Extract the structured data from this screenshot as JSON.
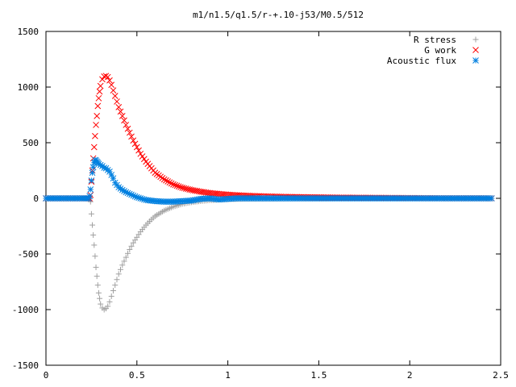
{
  "chart_data": {
    "type": "scatter",
    "title": "m1/n1.5/q1.5/r-+.10-j53/M0.5/512",
    "xlabel": "",
    "ylabel": "",
    "xlim": [
      0,
      2.5
    ],
    "ylim": [
      -1500,
      1500
    ],
    "xticks": [
      0,
      0.5,
      1,
      1.5,
      2,
      2.5
    ],
    "xtick_labels": [
      "0",
      "0.5",
      "1",
      "1.5",
      "2",
      "2.5"
    ],
    "yticks": [
      -1500,
      -1000,
      -500,
      0,
      500,
      1000,
      1500
    ],
    "ytick_labels": [
      "-1500",
      "-1000",
      "-500",
      "0",
      "500",
      "1000",
      "1500"
    ],
    "grid": false,
    "legend_position": "top-right",
    "series": [
      {
        "name": "R stress",
        "marker": "plus",
        "color": "#a0a0a0",
        "x": [
          0.0,
          0.05,
          0.1,
          0.15,
          0.2,
          0.24,
          0.245,
          0.25,
          0.255,
          0.26,
          0.265,
          0.27,
          0.275,
          0.28,
          0.285,
          0.29,
          0.295,
          0.3,
          0.31,
          0.32,
          0.33,
          0.34,
          0.35,
          0.36,
          0.37,
          0.38,
          0.39,
          0.4,
          0.42,
          0.44,
          0.46,
          0.48,
          0.5,
          0.52,
          0.55,
          0.58,
          0.6,
          0.65,
          0.7,
          0.75,
          0.8,
          0.85,
          0.9,
          0.95,
          1.0,
          1.05,
          1.1,
          1.2,
          1.3,
          1.4,
          1.5,
          1.6,
          1.7,
          1.8,
          1.9,
          2.0,
          2.1,
          2.2,
          2.3,
          2.4,
          2.45
        ],
        "y": [
          0,
          0,
          0,
          0,
          0,
          0,
          -30,
          -140,
          -240,
          -330,
          -420,
          -520,
          -620,
          -700,
          -780,
          -850,
          -900,
          -950,
          -985,
          -1000,
          -990,
          -970,
          -930,
          -880,
          -830,
          -780,
          -730,
          -680,
          -600,
          -530,
          -460,
          -400,
          -350,
          -300,
          -240,
          -190,
          -160,
          -110,
          -75,
          -50,
          -35,
          -25,
          -17,
          -12,
          -8,
          -6,
          -4,
          -3,
          -2,
          -1,
          -1,
          0,
          0,
          0,
          0,
          0,
          0,
          0,
          0,
          0,
          0
        ]
      },
      {
        "name": "G work",
        "marker": "cross",
        "color": "#ff0000",
        "x": [
          0.0,
          0.05,
          0.1,
          0.15,
          0.2,
          0.24,
          0.245,
          0.25,
          0.255,
          0.26,
          0.265,
          0.27,
          0.275,
          0.28,
          0.285,
          0.29,
          0.295,
          0.3,
          0.31,
          0.32,
          0.33,
          0.34,
          0.35,
          0.36,
          0.37,
          0.38,
          0.39,
          0.4,
          0.42,
          0.44,
          0.46,
          0.48,
          0.5,
          0.52,
          0.55,
          0.58,
          0.6,
          0.65,
          0.7,
          0.75,
          0.8,
          0.85,
          0.9,
          0.95,
          1.0,
          1.05,
          1.1,
          1.2,
          1.3,
          1.4,
          1.5,
          1.6,
          1.7,
          1.8,
          1.9,
          2.0,
          2.1,
          2.2,
          2.3,
          2.4,
          2.45
        ],
        "y": [
          0,
          0,
          0,
          0,
          0,
          0,
          30,
          150,
          250,
          360,
          460,
          560,
          660,
          740,
          830,
          900,
          960,
          1010,
          1070,
          1095,
          1100,
          1090,
          1060,
          1020,
          970,
          920,
          870,
          820,
          740,
          660,
          590,
          520,
          460,
          400,
          330,
          270,
          230,
          170,
          125,
          95,
          75,
          60,
          48,
          40,
          33,
          28,
          24,
          18,
          14,
          11,
          9,
          7,
          6,
          5,
          4,
          3,
          2,
          1,
          1,
          1,
          0
        ]
      },
      {
        "name": "Acoustic flux",
        "marker": "star",
        "color": "#0080e0",
        "x": [
          0.0,
          0.05,
          0.1,
          0.15,
          0.2,
          0.235,
          0.24,
          0.245,
          0.25,
          0.255,
          0.26,
          0.265,
          0.27,
          0.275,
          0.28,
          0.285,
          0.29,
          0.3,
          0.31,
          0.32,
          0.33,
          0.34,
          0.35,
          0.36,
          0.37,
          0.38,
          0.39,
          0.4,
          0.42,
          0.44,
          0.46,
          0.48,
          0.5,
          0.55,
          0.6,
          0.65,
          0.7,
          0.75,
          0.8,
          0.85,
          0.9,
          0.95,
          1.0,
          1.05,
          1.1,
          1.2,
          1.3,
          1.4,
          1.5,
          1.6,
          1.7,
          1.8,
          1.9,
          2.0,
          2.1,
          2.2,
          2.3,
          2.4,
          2.45
        ],
        "y": [
          0,
          0,
          0,
          0,
          0,
          0,
          20,
          80,
          160,
          230,
          280,
          320,
          345,
          340,
          330,
          320,
          310,
          300,
          290,
          275,
          270,
          255,
          240,
          210,
          180,
          140,
          120,
          100,
          75,
          55,
          40,
          25,
          10,
          -15,
          -25,
          -30,
          -30,
          -25,
          -20,
          -5,
          0,
          -10,
          -5,
          0,
          0,
          0,
          0,
          0,
          0,
          0,
          0,
          0,
          0,
          0,
          0,
          0,
          0,
          0,
          0
        ]
      }
    ]
  }
}
